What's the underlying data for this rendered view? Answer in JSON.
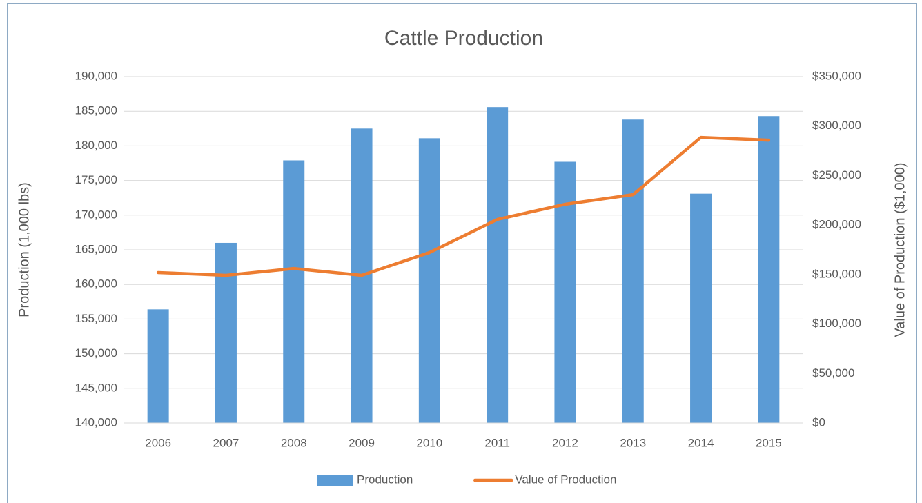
{
  "chart_data": {
    "type": "bar-line",
    "title": "Cattle Production",
    "ylabel": "Production (1,000 lbs)",
    "y2label": "Value of Production ($1,000)",
    "categories": [
      "2006",
      "2007",
      "2008",
      "2009",
      "2010",
      "2011",
      "2012",
      "2013",
      "2014",
      "2015"
    ],
    "series": [
      {
        "name": "Production",
        "type": "bar",
        "color": "#5b9bd5",
        "axis": "y",
        "values": [
          156400,
          166000,
          177900,
          182500,
          181100,
          185600,
          177700,
          183800,
          173100,
          184300
        ]
      },
      {
        "name": "Value of Production",
        "type": "line",
        "color": "#ed7d31",
        "axis": "y2",
        "values": [
          152000,
          149200,
          156100,
          149200,
          172200,
          205700,
          221000,
          230700,
          288600,
          285800
        ]
      }
    ],
    "ylim": [
      140000,
      190000
    ],
    "yticks": [
      {
        "value": 140000,
        "label": "140,000"
      },
      {
        "value": 145000,
        "label": "145,000"
      },
      {
        "value": 150000,
        "label": "150,000"
      },
      {
        "value": 155000,
        "label": "155,000"
      },
      {
        "value": 160000,
        "label": "160,000"
      },
      {
        "value": 165000,
        "label": "165,000"
      },
      {
        "value": 170000,
        "label": "170,000"
      },
      {
        "value": 175000,
        "label": "175,000"
      },
      {
        "value": 180000,
        "label": "180,000"
      },
      {
        "value": 185000,
        "label": "185,000"
      },
      {
        "value": 190000,
        "label": "190,000"
      }
    ],
    "y2lim": [
      0,
      350000
    ],
    "y2ticks": [
      {
        "value": 0,
        "label": "$0"
      },
      {
        "value": 50000,
        "label": "$50,000"
      },
      {
        "value": 100000,
        "label": "$100,000"
      },
      {
        "value": 150000,
        "label": "$150,000"
      },
      {
        "value": 200000,
        "label": "$200,000"
      },
      {
        "value": 250000,
        "label": "$250,000"
      },
      {
        "value": 300000,
        "label": "$300,000"
      },
      {
        "value": 350000,
        "label": "$350,000"
      }
    ],
    "grid": true,
    "legend": "bottom"
  }
}
